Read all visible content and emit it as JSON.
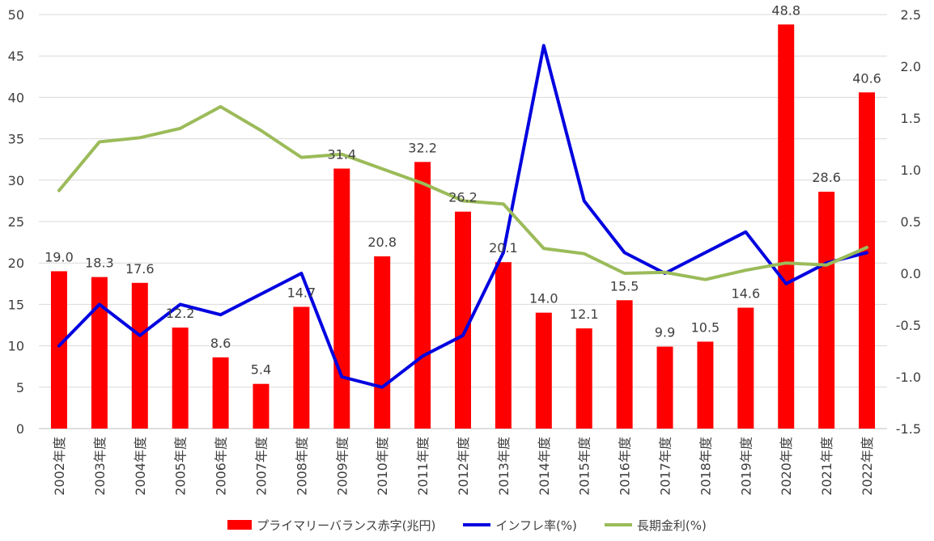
{
  "chart_data": {
    "type": "bar",
    "categories": [
      "2002年度",
      "2003年度",
      "2004年度",
      "2005年度",
      "2006年度",
      "2007年度",
      "2008年度",
      "2009年度",
      "2010年度",
      "2011年度",
      "2012年度",
      "2013年度",
      "2014年度",
      "2015年度",
      "2016年度",
      "2017年度",
      "2018年度",
      "2019年度",
      "2020年度",
      "2021年度",
      "2022年度"
    ],
    "series": [
      {
        "name": "プライマリーバランス赤字(兆円)",
        "type": "bar",
        "axis": "left",
        "color": "#ff0000",
        "values": [
          19.0,
          18.3,
          17.6,
          12.2,
          8.6,
          5.4,
          14.7,
          31.4,
          20.8,
          32.2,
          26.2,
          20.1,
          14.0,
          12.1,
          15.5,
          9.9,
          10.5,
          14.6,
          48.8,
          28.6,
          40.6
        ]
      },
      {
        "name": "インフレ率(%)",
        "type": "line",
        "axis": "right",
        "color": "#0000e0",
        "values": [
          -0.7,
          -0.3,
          -0.6,
          -0.3,
          -0.4,
          -0.2,
          0.0,
          -1.0,
          -1.1,
          -0.8,
          -0.6,
          0.2,
          2.2,
          0.7,
          0.2,
          0.0,
          0.2,
          0.4,
          -0.1,
          0.1,
          0.2
        ]
      },
      {
        "name": "長期金利(%)",
        "type": "line",
        "axis": "right",
        "color": "#9bbb59",
        "values": [
          0.8,
          1.27,
          1.31,
          1.4,
          1.61,
          1.38,
          1.12,
          1.15,
          1.01,
          0.87,
          0.7,
          0.67,
          0.24,
          0.19,
          0.0,
          0.01,
          -0.06,
          0.03,
          0.1,
          0.08,
          0.25
        ]
      }
    ],
    "y_left": {
      "min": 0,
      "max": 50,
      "ticks": [
        "0",
        "5",
        "10",
        "15",
        "20",
        "25",
        "30",
        "35",
        "40",
        "45",
        "50"
      ]
    },
    "y_right": {
      "min": -1.5,
      "max": 2.5,
      "ticks": [
        "-1.5",
        "-1.0",
        "-0.5",
        "0.0",
        "0.5",
        "1.0",
        "1.5",
        "2.0",
        "2.5"
      ]
    },
    "data_labels": [
      "19.0",
      "18.3",
      "17.6",
      "12.2",
      "8.6",
      "5.4",
      "14.7",
      "31.4",
      "20.8",
      "32.2",
      "26.2",
      "20.1",
      "14.0",
      "12.1",
      "15.5",
      "9.9",
      "10.5",
      "14.6",
      "48.8",
      "28.6",
      "40.6"
    ],
    "grid": true,
    "legend": "bottom"
  },
  "legend": {
    "items": [
      {
        "label": "プライマリーバランス赤字(兆円)",
        "color": "#ff0000"
      },
      {
        "label": "インフレ率(%)",
        "color": "#0000e0"
      },
      {
        "label": "長期金利(%)",
        "color": "#9bbb59"
      }
    ]
  }
}
